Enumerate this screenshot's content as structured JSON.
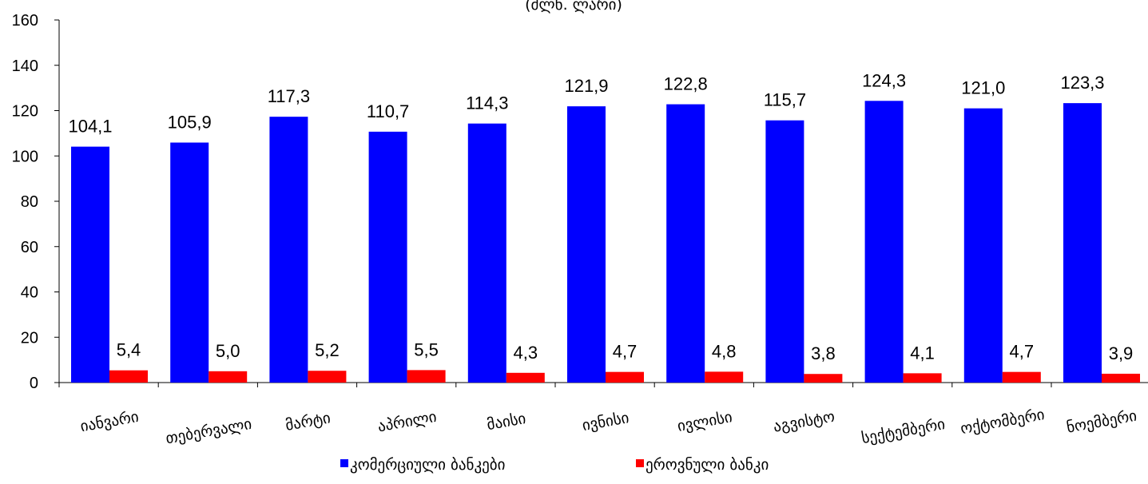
{
  "chart_data": {
    "type": "bar",
    "subtitle": "(მლნ. ლარი)",
    "categories": [
      "იანვარი",
      "თებერვალი",
      "მარტი",
      "აპრილი",
      "მაისი",
      "ივნისი",
      "ივლისი",
      "აგვისტო",
      "სექტემბერი",
      "ოქტომბერი",
      "ნოემბერი"
    ],
    "series": [
      {
        "name": "კომერციული ბანკები",
        "color": "#0000ff",
        "values": [
          104.1,
          105.9,
          117.3,
          110.7,
          114.3,
          121.9,
          122.8,
          115.7,
          124.3,
          121.0,
          123.3
        ],
        "labels": [
          "104,1",
          "105,9",
          "117,3",
          "110,7",
          "114,3",
          "121,9",
          "122,8",
          "115,7",
          "124,3",
          "121,0",
          "123,3"
        ]
      },
      {
        "name": "ეროვნული ბანკი",
        "color": "#ff0000",
        "values": [
          5.4,
          5.0,
          5.2,
          5.5,
          4.3,
          4.7,
          4.8,
          3.8,
          4.1,
          4.7,
          3.9
        ],
        "labels": [
          "5,4",
          "5,0",
          "5,2",
          "5,5",
          "4,3",
          "4,7",
          "4,8",
          "3,8",
          "4,1",
          "4,7",
          "3,9"
        ]
      }
    ],
    "ylim": [
      0,
      160
    ],
    "yticks": [
      "0",
      "20",
      "40",
      "60",
      "80",
      "100",
      "120",
      "140",
      "160"
    ],
    "grid": false,
    "legend_position": "bottom"
  }
}
